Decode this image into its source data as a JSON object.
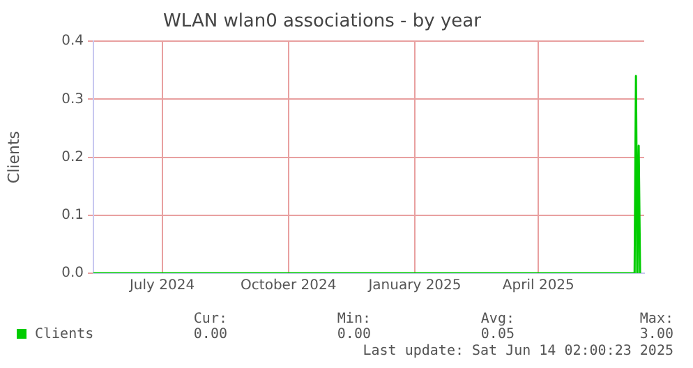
{
  "chart_data": {
    "type": "area",
    "title": "WLAN wlan0 associations - by year",
    "ylabel": "Clients",
    "x": [
      "2024-05-12",
      "2025-06-10",
      "2025-06-11",
      "2025-06-12",
      "2025-06-13",
      "2025-06-14"
    ],
    "series": [
      {
        "name": "Clients",
        "color": "#00cc00",
        "values": [
          0,
          0,
          0.34,
          0,
          0.22,
          0
        ]
      }
    ],
    "xlim": [
      "2024-05-12",
      "2025-06-17"
    ],
    "xticks": [
      {
        "value": "2024-07-01",
        "label": "July 2024"
      },
      {
        "value": "2024-10-01",
        "label": "October 2024"
      },
      {
        "value": "2025-01-01",
        "label": "January 2025"
      },
      {
        "value": "2025-04-01",
        "label": "April 2025"
      }
    ],
    "ylim": [
      0,
      0.4
    ],
    "yticks": [
      {
        "value": 0,
        "label": "0.0"
      },
      0.1,
      0.2,
      0.3,
      0.4
    ],
    "grid": true,
    "legend": "bottom left",
    "annotations": [
      "Cur:",
      "Min:",
      "Avg:",
      "Max:",
      "0.00",
      "0.00",
      "0.05",
      "3.00",
      "Last update: Sat Jun 14 02:00:23 2025"
    ]
  }
}
